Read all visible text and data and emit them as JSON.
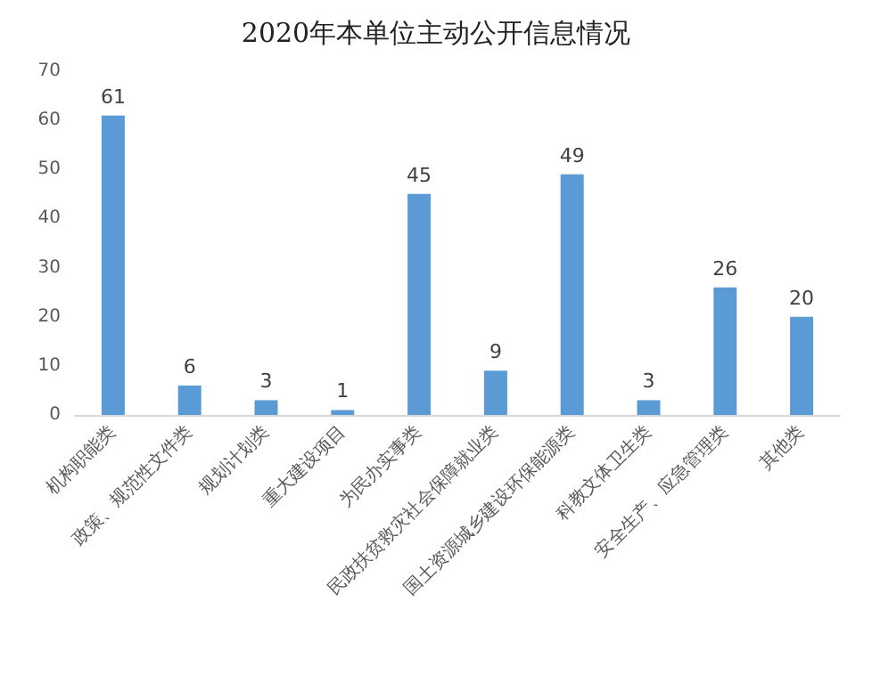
{
  "chart_data": {
    "type": "bar",
    "title": "2020年本单位主动公开信息情况",
    "categories": [
      "机构职能类",
      "政策、规范性文件类",
      "规划计划类",
      "重大建设项目",
      "为民办实事类",
      "民政扶贫救灾社会保障就业类",
      "国土资源城乡建设环保能源类",
      "科教文体卫生类",
      "安全生产、应急管理类",
      "其他类"
    ],
    "values": [
      61,
      6,
      3,
      1,
      45,
      9,
      49,
      3,
      26,
      20
    ],
    "color": "#5b9bd5",
    "ylim": [
      0,
      70
    ],
    "yticks": [
      0,
      10,
      20,
      30,
      40,
      50,
      60,
      70
    ],
    "grid": false,
    "data_labels": true
  }
}
